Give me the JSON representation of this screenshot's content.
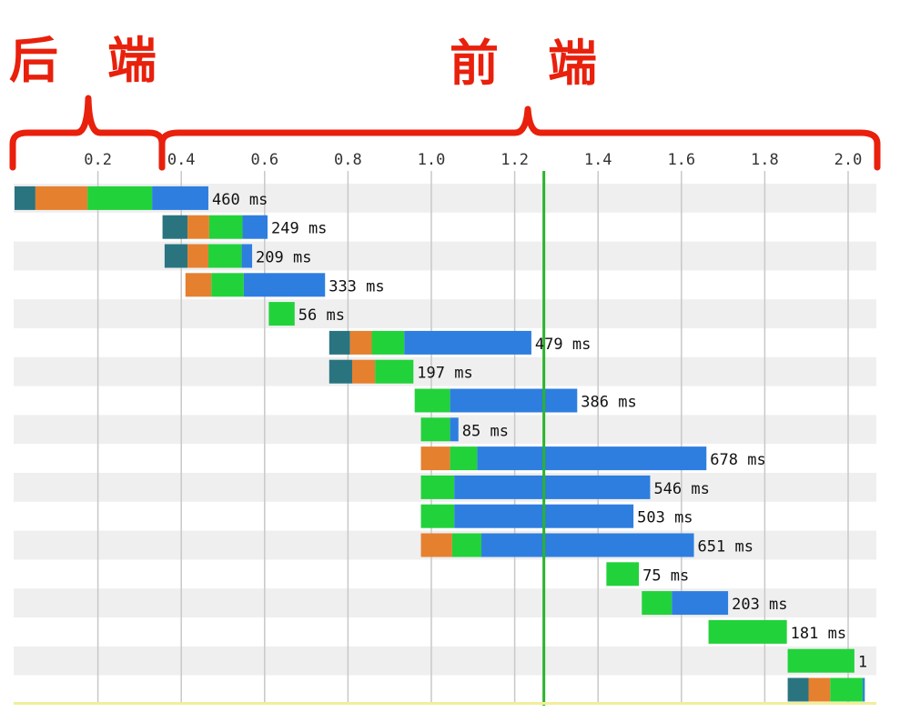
{
  "annotations": {
    "backend_label": "后　端",
    "frontend_label": "前　端",
    "color": "#e8200c"
  },
  "colors": {
    "dns": "#2a7480",
    "connect": "#e5802f",
    "ttfb": "#22d23a",
    "download": "#2e7ee0",
    "row_stripe": "#efefef",
    "grid": "#c8c8c8",
    "marker": "#2bb32b",
    "baseline": "#f2ee9a",
    "axis_text": "#333333",
    "label_text": "#111111"
  },
  "chart_data": {
    "type": "bar",
    "subtype": "waterfall",
    "title": "",
    "xlabel": "",
    "ylabel": "",
    "x_unit": "s",
    "xlim": [
      0,
      2.07
    ],
    "x_ticks": [
      "0.2",
      "0.4",
      "0.6",
      "0.8",
      "1.0",
      "1.2",
      "1.4",
      "1.6",
      "1.8",
      "2.0"
    ],
    "grid": true,
    "marker_line_x": 1.27,
    "segment_order": [
      "dns",
      "connect",
      "ttfb",
      "download"
    ],
    "rows": [
      {
        "start": 0.0,
        "segments": [
          0.05,
          0.125,
          0.155,
          0.135
        ],
        "label": "460 ms"
      },
      {
        "start": 0.355,
        "segments": [
          0.06,
          0.052,
          0.08,
          0.06
        ],
        "label": "249 ms"
      },
      {
        "start": 0.36,
        "segments": [
          0.055,
          0.05,
          0.08,
          0.025
        ],
        "label": "209 ms"
      },
      {
        "start": 0.41,
        "segments": [
          0.0,
          0.062,
          0.078,
          0.195
        ],
        "label": "333 ms"
      },
      {
        "start": 0.61,
        "segments": [
          0.0,
          0.0,
          0.062,
          0.0
        ],
        "label": "56 ms"
      },
      {
        "start": 0.755,
        "segments": [
          0.05,
          0.052,
          0.078,
          0.305
        ],
        "label": "479 ms"
      },
      {
        "start": 0.755,
        "segments": [
          0.055,
          0.055,
          0.092,
          0.0
        ],
        "label": "197 ms"
      },
      {
        "start": 0.96,
        "segments": [
          0.0,
          0.0,
          0.085,
          0.305
        ],
        "label": "386 ms"
      },
      {
        "start": 0.975,
        "segments": [
          0.0,
          0.0,
          0.07,
          0.02
        ],
        "label": "85 ms"
      },
      {
        "start": 0.975,
        "segments": [
          0.0,
          0.07,
          0.065,
          0.55
        ],
        "label": "678 ms"
      },
      {
        "start": 0.975,
        "segments": [
          0.0,
          0.0,
          0.08,
          0.47
        ],
        "label": "546 ms"
      },
      {
        "start": 0.975,
        "segments": [
          0.0,
          0.0,
          0.08,
          0.43
        ],
        "label": "503 ms"
      },
      {
        "start": 0.975,
        "segments": [
          0.0,
          0.075,
          0.07,
          0.51
        ],
        "label": "651 ms"
      },
      {
        "start": 1.42,
        "segments": [
          0.0,
          0.0,
          0.078,
          0.0
        ],
        "label": "75 ms"
      },
      {
        "start": 1.505,
        "segments": [
          0.0,
          0.0,
          0.072,
          0.135
        ],
        "label": "203 ms"
      },
      {
        "start": 1.665,
        "segments": [
          0.0,
          0.0,
          0.188,
          0.0
        ],
        "label": "181 ms"
      },
      {
        "start": 1.855,
        "segments": [
          0.0,
          0.0,
          0.16,
          0.0
        ],
        "label": "1"
      },
      {
        "start": 1.855,
        "segments": [
          0.05,
          0.052,
          0.078,
          0.005
        ],
        "label": ""
      }
    ]
  }
}
